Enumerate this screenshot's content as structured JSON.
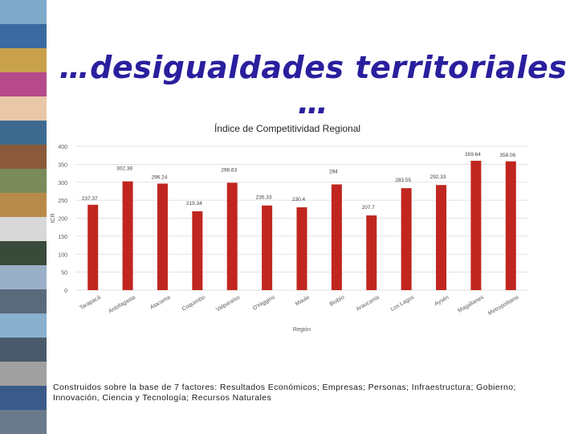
{
  "slide": {
    "title": "…desigualdades territoriales …",
    "footnote": "Construidos sobre la base de 7 factores: Resultados Económicos; Empresas; Personas; Infraestructura; Gobierno; Innovación, Ciencia y Tecnología; Recursos Naturales"
  },
  "colors": {
    "bar": "#c0261f",
    "title": "#2a1f9e",
    "grid": "#d9d9d9",
    "axis_text": "#595959",
    "label_text": "#404040"
  },
  "photo_strip": {
    "tiles": [
      "#7fa9c9",
      "#3a6aa0",
      "#c9a14a",
      "#b74a8a",
      "#e9c7a9",
      "#3d6a8e",
      "#8a5a3a",
      "#7a8a5a",
      "#b88a4a",
      "#d8d8d8",
      "#3a4a3a",
      "#9ab0c8",
      "#5a6a7a",
      "#8ab0d0",
      "#4a5a6a",
      "#a0a0a0",
      "#3a5a8a",
      "#6a7a8a"
    ]
  },
  "chart_data": {
    "type": "bar",
    "title": "Índice de Competitividad Regional",
    "xlabel": "Región",
    "ylabel": "ICR",
    "ylim": [
      0,
      400
    ],
    "yticks": [
      0,
      50,
      100,
      150,
      200,
      250,
      300,
      350,
      400
    ],
    "grid": true,
    "categories": [
      "Tarapacá",
      "Antofagasta",
      "Atacama",
      "Coquimbo",
      "Valparaíso",
      "O'Higgins",
      "Maule",
      "Biobío",
      "Araucanía",
      "Los Lagos",
      "Aysén",
      "Magallanes",
      "Metropolitana"
    ],
    "values": [
      237.37,
      302.38,
      296.24,
      219.34,
      298.63,
      235.33,
      230.4,
      294,
      207.7,
      283.55,
      292.33,
      359.64,
      358.06
    ],
    "value_labels": [
      "237.37",
      "302.38",
      "296.24",
      "219.34",
      "298.63",
      "235.33",
      "230.4",
      "294",
      "207.7",
      "283.55",
      "292.33",
      "359.64",
      "358.06"
    ]
  }
}
